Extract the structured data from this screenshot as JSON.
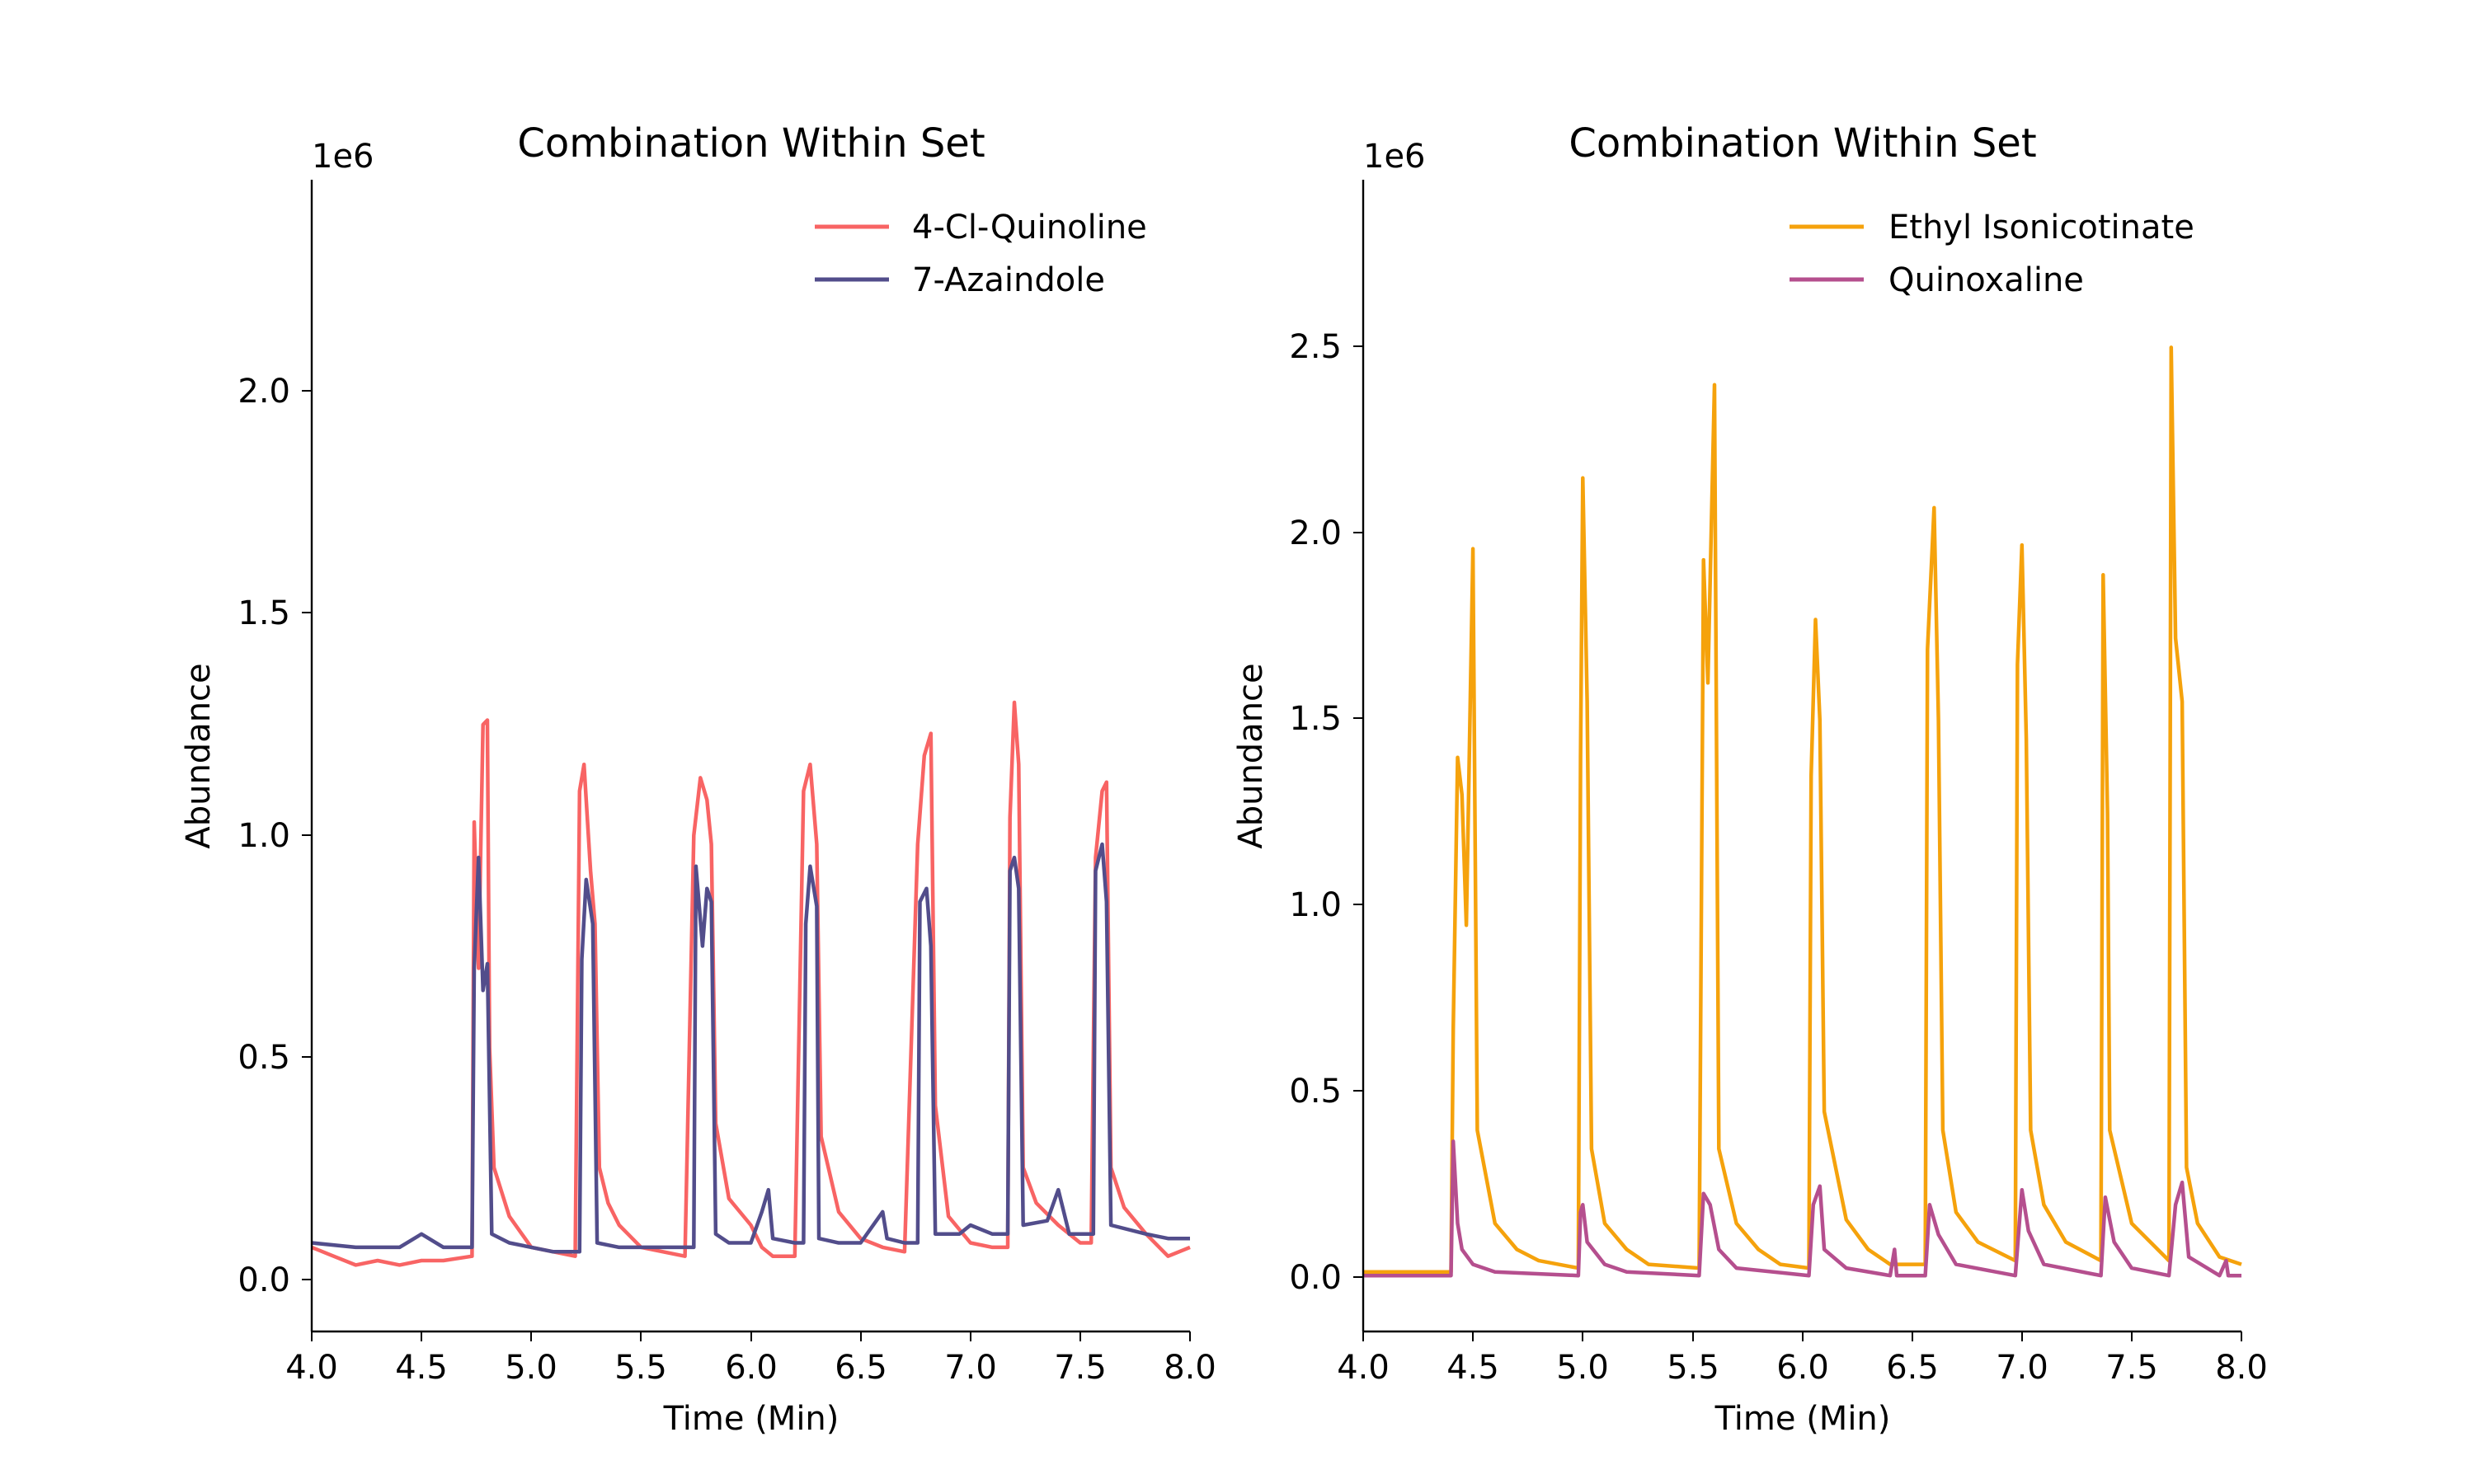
{
  "chart_data": [
    {
      "type": "line",
      "title": "Combination Within Set",
      "xlabel": "Time (Min)",
      "ylabel": "Abundance",
      "y_scale_label": "1e6",
      "xlim": [
        4.0,
        8.0
      ],
      "ylim": [
        -0.12,
        2.48
      ],
      "x_ticks": [
        "4.0",
        "4.5",
        "5.0",
        "5.5",
        "6.0",
        "6.5",
        "7.0",
        "7.5",
        "8.0"
      ],
      "y_ticks": [
        "0.0",
        "0.5",
        "1.0",
        "1.5",
        "2.0"
      ],
      "legend_position": "top-right",
      "grid": false,
      "series": [
        {
          "name": "4-Cl-Quinoline",
          "color": "#f86464",
          "points": [
            [
              4.0,
              0.07
            ],
            [
              4.1,
              0.05
            ],
            [
              4.2,
              0.03
            ],
            [
              4.3,
              0.04
            ],
            [
              4.4,
              0.03
            ],
            [
              4.5,
              0.04
            ],
            [
              4.6,
              0.04
            ],
            [
              4.73,
              0.05
            ],
            [
              4.74,
              1.03
            ],
            [
              4.76,
              0.7
            ],
            [
              4.78,
              1.25
            ],
            [
              4.8,
              1.26
            ],
            [
              4.81,
              0.52
            ],
            [
              4.83,
              0.25
            ],
            [
              4.9,
              0.14
            ],
            [
              5.0,
              0.07
            ],
            [
              5.1,
              0.06
            ],
            [
              5.2,
              0.05
            ],
            [
              5.22,
              1.1
            ],
            [
              5.24,
              1.16
            ],
            [
              5.27,
              0.92
            ],
            [
              5.29,
              0.8
            ],
            [
              5.31,
              0.25
            ],
            [
              5.35,
              0.17
            ],
            [
              5.4,
              0.12
            ],
            [
              5.5,
              0.07
            ],
            [
              5.6,
              0.06
            ],
            [
              5.7,
              0.05
            ],
            [
              5.74,
              1.0
            ],
            [
              5.77,
              1.13
            ],
            [
              5.8,
              1.08
            ],
            [
              5.82,
              0.98
            ],
            [
              5.84,
              0.35
            ],
            [
              5.9,
              0.18
            ],
            [
              6.0,
              0.12
            ],
            [
              6.05,
              0.07
            ],
            [
              6.1,
              0.05
            ],
            [
              6.2,
              0.05
            ],
            [
              6.24,
              1.1
            ],
            [
              6.27,
              1.16
            ],
            [
              6.3,
              0.98
            ],
            [
              6.32,
              0.32
            ],
            [
              6.4,
              0.15
            ],
            [
              6.5,
              0.09
            ],
            [
              6.6,
              0.07
            ],
            [
              6.7,
              0.06
            ],
            [
              6.76,
              0.98
            ],
            [
              6.79,
              1.18
            ],
            [
              6.82,
              1.23
            ],
            [
              6.84,
              0.39
            ],
            [
              6.9,
              0.14
            ],
            [
              7.0,
              0.08
            ],
            [
              7.1,
              0.07
            ],
            [
              7.17,
              0.07
            ],
            [
              7.18,
              1.04
            ],
            [
              7.2,
              1.3
            ],
            [
              7.22,
              1.16
            ],
            [
              7.24,
              0.25
            ],
            [
              7.3,
              0.17
            ],
            [
              7.4,
              0.12
            ],
            [
              7.5,
              0.08
            ],
            [
              7.55,
              0.08
            ],
            [
              7.57,
              0.95
            ],
            [
              7.6,
              1.1
            ],
            [
              7.62,
              1.12
            ],
            [
              7.64,
              0.25
            ],
            [
              7.7,
              0.16
            ],
            [
              7.8,
              0.1
            ],
            [
              7.9,
              0.05
            ],
            [
              8.0,
              0.07
            ]
          ]
        },
        {
          "name": "7-Azaindole",
          "color": "#524d8b",
          "points": [
            [
              4.0,
              0.08
            ],
            [
              4.2,
              0.07
            ],
            [
              4.4,
              0.07
            ],
            [
              4.5,
              0.1
            ],
            [
              4.6,
              0.07
            ],
            [
              4.73,
              0.07
            ],
            [
              4.74,
              0.7
            ],
            [
              4.76,
              0.95
            ],
            [
              4.78,
              0.65
            ],
            [
              4.8,
              0.71
            ],
            [
              4.82,
              0.1
            ],
            [
              4.9,
              0.08
            ],
            [
              5.0,
              0.07
            ],
            [
              5.1,
              0.06
            ],
            [
              5.22,
              0.06
            ],
            [
              5.23,
              0.72
            ],
            [
              5.25,
              0.9
            ],
            [
              5.28,
              0.8
            ],
            [
              5.3,
              0.08
            ],
            [
              5.4,
              0.07
            ],
            [
              5.6,
              0.07
            ],
            [
              5.74,
              0.07
            ],
            [
              5.75,
              0.93
            ],
            [
              5.78,
              0.75
            ],
            [
              5.8,
              0.88
            ],
            [
              5.82,
              0.85
            ],
            [
              5.84,
              0.1
            ],
            [
              5.9,
              0.08
            ],
            [
              6.0,
              0.08
            ],
            [
              6.05,
              0.15
            ],
            [
              6.08,
              0.2
            ],
            [
              6.1,
              0.09
            ],
            [
              6.2,
              0.08
            ],
            [
              6.24,
              0.08
            ],
            [
              6.25,
              0.8
            ],
            [
              6.27,
              0.93
            ],
            [
              6.3,
              0.84
            ],
            [
              6.31,
              0.09
            ],
            [
              6.4,
              0.08
            ],
            [
              6.5,
              0.08
            ],
            [
              6.6,
              0.15
            ],
            [
              6.62,
              0.09
            ],
            [
              6.7,
              0.08
            ],
            [
              6.76,
              0.08
            ],
            [
              6.77,
              0.85
            ],
            [
              6.8,
              0.88
            ],
            [
              6.82,
              0.75
            ],
            [
              6.84,
              0.1
            ],
            [
              6.95,
              0.1
            ],
            [
              7.0,
              0.12
            ],
            [
              7.1,
              0.1
            ],
            [
              7.17,
              0.1
            ],
            [
              7.18,
              0.92
            ],
            [
              7.2,
              0.95
            ],
            [
              7.22,
              0.88
            ],
            [
              7.24,
              0.12
            ],
            [
              7.35,
              0.13
            ],
            [
              7.4,
              0.2
            ],
            [
              7.45,
              0.1
            ],
            [
              7.56,
              0.1
            ],
            [
              7.57,
              0.92
            ],
            [
              7.6,
              0.98
            ],
            [
              7.62,
              0.85
            ],
            [
              7.64,
              0.12
            ],
            [
              7.8,
              0.1
            ],
            [
              7.9,
              0.09
            ],
            [
              8.0,
              0.09
            ]
          ]
        }
      ]
    },
    {
      "type": "line",
      "title": "Combination Within Set",
      "xlabel": "Time (Min)",
      "ylabel": "Abundance",
      "y_scale_label": "1e6",
      "xlim": [
        4.0,
        8.0
      ],
      "ylim": [
        -0.14,
        2.95
      ],
      "x_ticks": [
        "4.0",
        "4.5",
        "5.0",
        "5.5",
        "6.0",
        "6.5",
        "7.0",
        "7.5",
        "8.0"
      ],
      "y_ticks": [
        "0.0",
        "0.5",
        "1.0",
        "1.5",
        "2.0",
        "2.5"
      ],
      "legend_position": "top-right",
      "grid": false,
      "series": [
        {
          "name": "Ethyl Isonicotinate",
          "color": "#f5a20c",
          "points": [
            [
              4.0,
              0.02
            ],
            [
              4.4,
              0.02
            ],
            [
              4.41,
              0.67
            ],
            [
              4.43,
              1.4
            ],
            [
              4.45,
              1.3
            ],
            [
              4.47,
              0.95
            ],
            [
              4.5,
              1.96
            ],
            [
              4.52,
              0.4
            ],
            [
              4.6,
              0.15
            ],
            [
              4.7,
              0.08
            ],
            [
              4.8,
              0.05
            ],
            [
              4.98,
              0.03
            ],
            [
              4.99,
              1.4
            ],
            [
              5.0,
              2.15
            ],
            [
              5.02,
              1.55
            ],
            [
              5.04,
              0.35
            ],
            [
              5.1,
              0.15
            ],
            [
              5.2,
              0.08
            ],
            [
              5.3,
              0.04
            ],
            [
              5.53,
              0.03
            ],
            [
              5.55,
              1.93
            ],
            [
              5.57,
              1.6
            ],
            [
              5.6,
              2.4
            ],
            [
              5.62,
              0.35
            ],
            [
              5.7,
              0.15
            ],
            [
              5.8,
              0.08
            ],
            [
              5.9,
              0.04
            ],
            [
              6.03,
              0.03
            ],
            [
              6.04,
              1.35
            ],
            [
              6.06,
              1.77
            ],
            [
              6.08,
              1.5
            ],
            [
              6.1,
              0.45
            ],
            [
              6.2,
              0.16
            ],
            [
              6.3,
              0.08
            ],
            [
              6.4,
              0.04
            ],
            [
              6.56,
              0.04
            ],
            [
              6.57,
              1.69
            ],
            [
              6.6,
              2.07
            ],
            [
              6.62,
              1.5
            ],
            [
              6.64,
              0.4
            ],
            [
              6.7,
              0.18
            ],
            [
              6.8,
              0.1
            ],
            [
              6.97,
              0.05
            ],
            [
              6.98,
              1.65
            ],
            [
              7.0,
              1.97
            ],
            [
              7.02,
              1.45
            ],
            [
              7.04,
              0.4
            ],
            [
              7.1,
              0.2
            ],
            [
              7.2,
              0.1
            ],
            [
              7.36,
              0.05
            ],
            [
              7.37,
              1.89
            ],
            [
              7.39,
              1.25
            ],
            [
              7.4,
              0.4
            ],
            [
              7.5,
              0.15
            ],
            [
              7.67,
              0.05
            ],
            [
              7.68,
              2.5
            ],
            [
              7.7,
              1.72
            ],
            [
              7.73,
              1.55
            ],
            [
              7.75,
              0.3
            ],
            [
              7.8,
              0.15
            ],
            [
              7.9,
              0.06
            ],
            [
              8.0,
              0.04
            ]
          ]
        },
        {
          "name": "Quinoxaline",
          "color": "#b54f8e",
          "points": [
            [
              4.0,
              0.01
            ],
            [
              4.4,
              0.01
            ],
            [
              4.41,
              0.37
            ],
            [
              4.43,
              0.15
            ],
            [
              4.45,
              0.08
            ],
            [
              4.5,
              0.04
            ],
            [
              4.6,
              0.02
            ],
            [
              4.98,
              0.01
            ],
            [
              4.99,
              0.18
            ],
            [
              5.0,
              0.2
            ],
            [
              5.02,
              0.1
            ],
            [
              5.1,
              0.04
            ],
            [
              5.2,
              0.02
            ],
            [
              5.53,
              0.01
            ],
            [
              5.55,
              0.23
            ],
            [
              5.58,
              0.2
            ],
            [
              5.62,
              0.08
            ],
            [
              5.7,
              0.03
            ],
            [
              6.03,
              0.01
            ],
            [
              6.05,
              0.2
            ],
            [
              6.08,
              0.25
            ],
            [
              6.1,
              0.08
            ],
            [
              6.2,
              0.03
            ],
            [
              6.4,
              0.01
            ],
            [
              6.42,
              0.08
            ],
            [
              6.43,
              0.01
            ],
            [
              6.56,
              0.01
            ],
            [
              6.58,
              0.2
            ],
            [
              6.62,
              0.12
            ],
            [
              6.7,
              0.04
            ],
            [
              6.97,
              0.01
            ],
            [
              7.0,
              0.24
            ],
            [
              7.03,
              0.13
            ],
            [
              7.1,
              0.04
            ],
            [
              7.36,
              0.01
            ],
            [
              7.38,
              0.22
            ],
            [
              7.42,
              0.1
            ],
            [
              7.5,
              0.03
            ],
            [
              7.67,
              0.01
            ],
            [
              7.7,
              0.2
            ],
            [
              7.73,
              0.26
            ],
            [
              7.76,
              0.06
            ],
            [
              7.9,
              0.01
            ],
            [
              7.93,
              0.05
            ],
            [
              7.94,
              0.01
            ],
            [
              8.0,
              0.01
            ]
          ]
        }
      ]
    }
  ]
}
